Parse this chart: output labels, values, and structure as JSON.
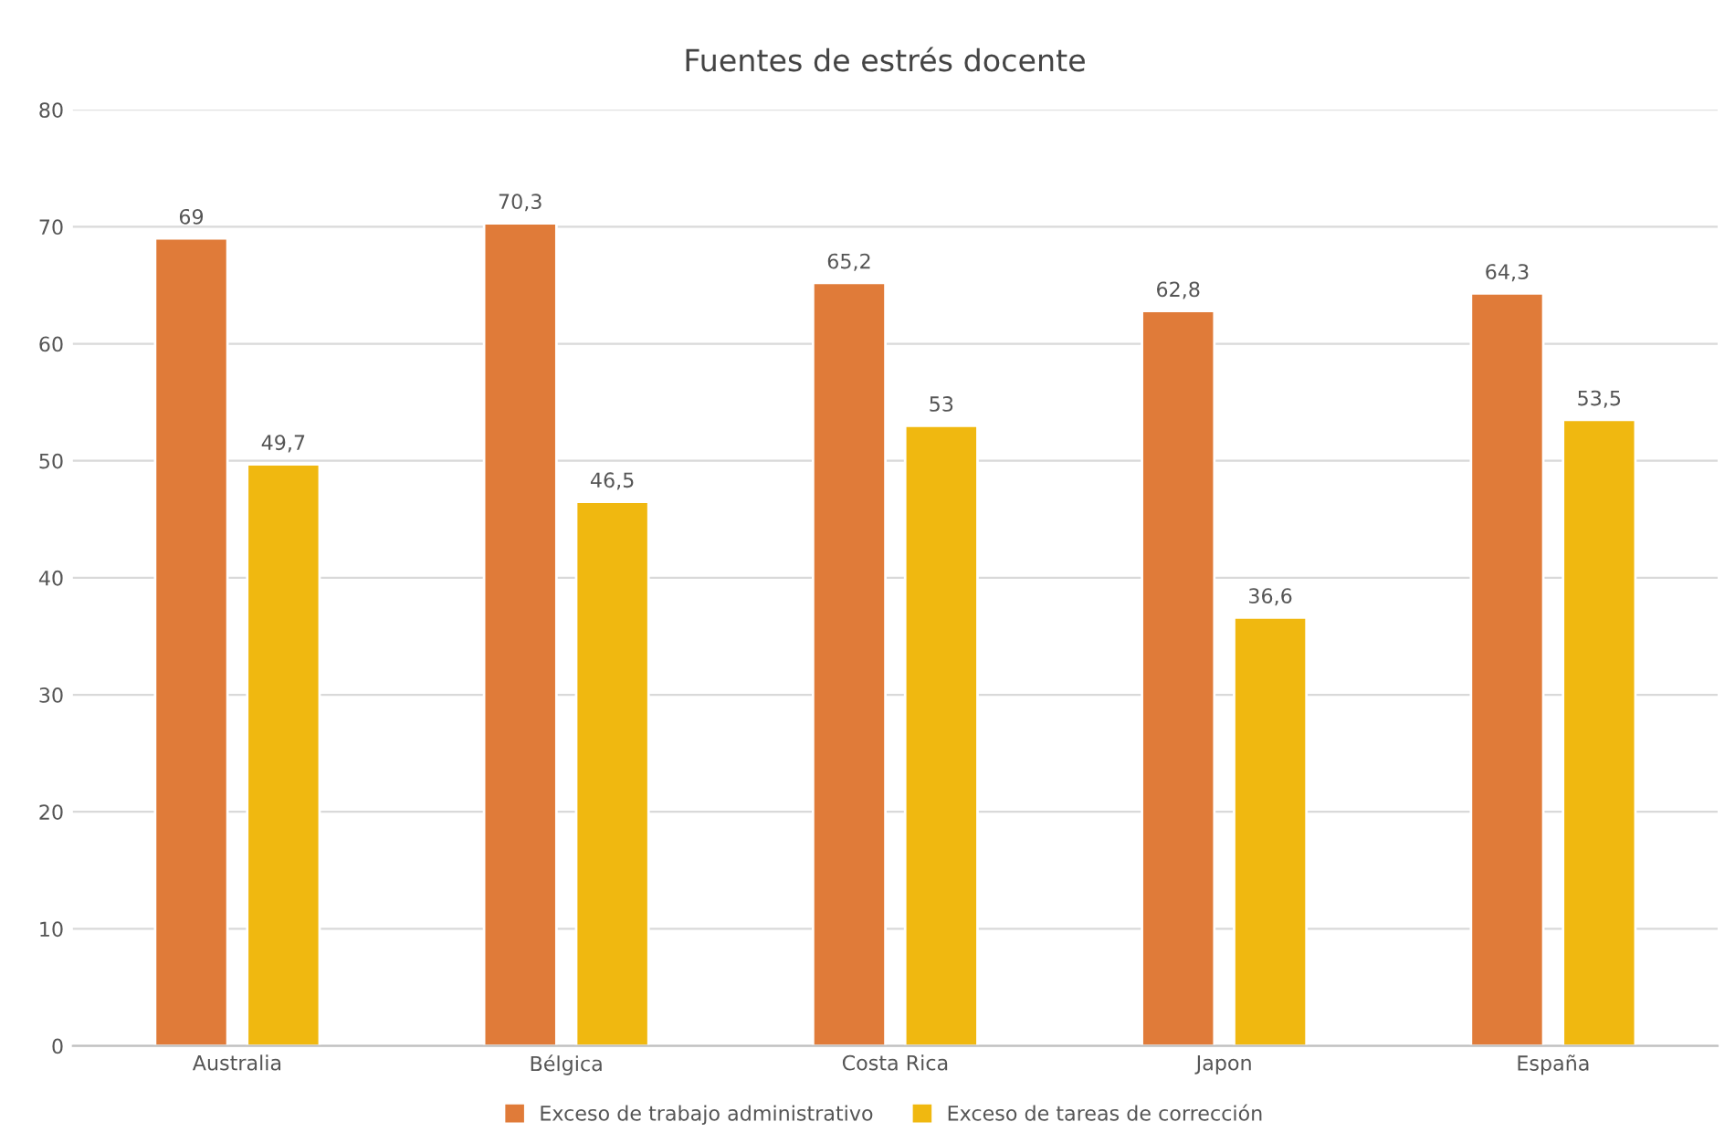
{
  "chart_data": {
    "type": "bar",
    "title": "Fuentes de estrés docente",
    "categories": [
      "Australia",
      "Bélgica",
      "Costa Rica",
      "Japon",
      "España"
    ],
    "series": [
      {
        "name": "Exceso de trabajo administrativo",
        "color": "#e07b39",
        "values": [
          69,
          70.3,
          65.2,
          62.8,
          64.3
        ],
        "value_labels": [
          "69",
          "70,3",
          "65,2",
          "62,8",
          "64,3"
        ]
      },
      {
        "name": "Exceso de tareas de corrección",
        "color": "#f0b810",
        "values": [
          49.7,
          46.5,
          53,
          36.6,
          53.5
        ],
        "value_labels": [
          "49,7",
          "46,5",
          "53",
          "36,6",
          "53,5"
        ]
      }
    ],
    "ylim": [
      0,
      80
    ],
    "yticks": [
      0,
      10,
      20,
      30,
      40,
      50,
      60,
      70,
      80
    ],
    "grid": "y",
    "legend": "bottom"
  }
}
